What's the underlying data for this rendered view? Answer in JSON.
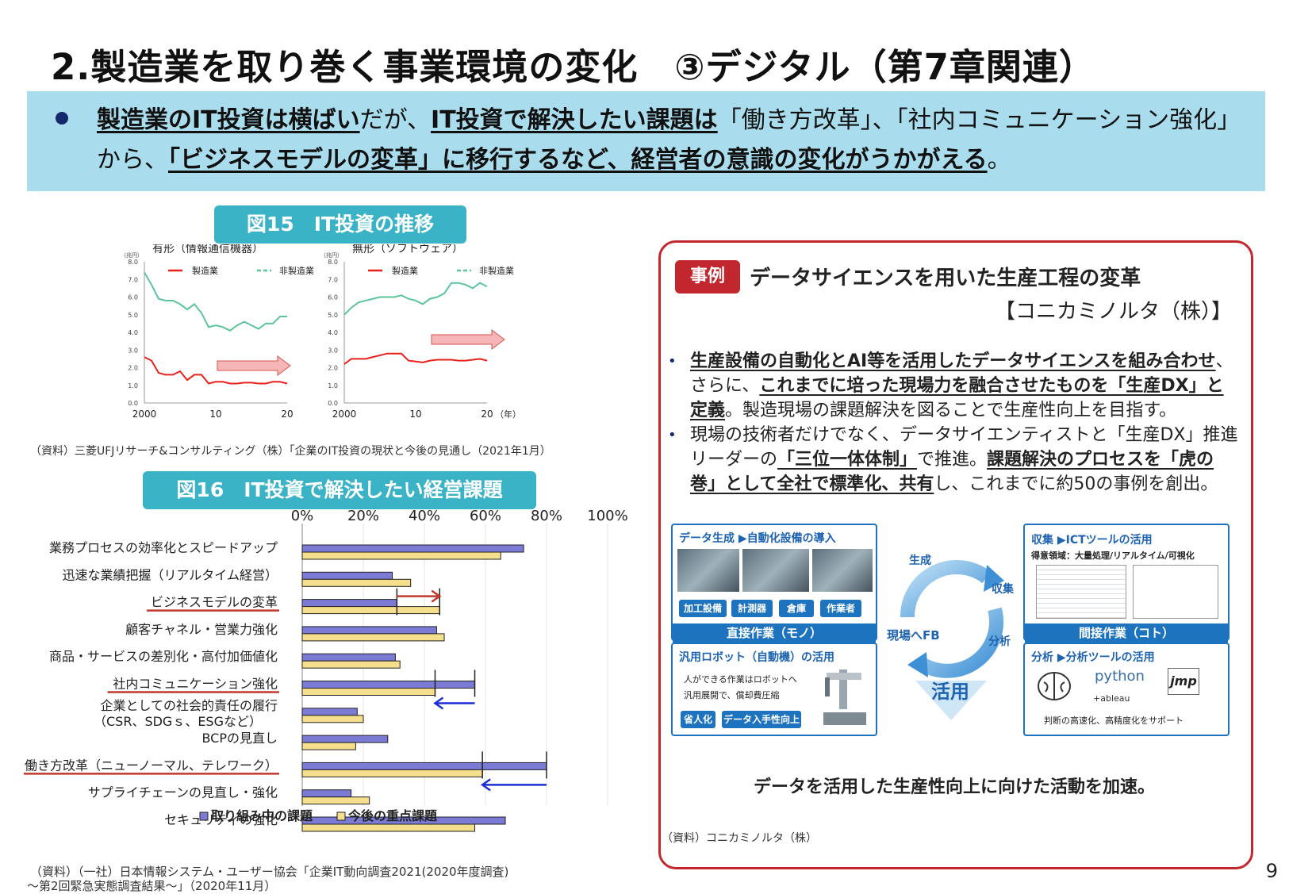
{
  "title": "2.製造業を取り巻く事業環境の変化　③デジタル（第7章関連）",
  "summary": {
    "p1_bold": "製造業のIT投資は横ばい",
    "p2": "だが、",
    "p3_bold": "IT投資で解決したい課題は",
    "p4": "「働き方改革」、「社内コミュニケーション強化」から、",
    "p5_bold": "「ビジネスモデルの変革」に移行するなど、経営者の意識の変化がうかがえる",
    "p6": "。"
  },
  "fig15_title": "図15　IT投資の推移",
  "fig15_source": "（資料）三菱UFJリサーチ&コンサルティング（株）「企業のIT投資の現状と今後の見通し（2021年1月）",
  "fig16_title": "図16　IT投資で解決したい経営課題",
  "fig16_source": "（資料）（一社）日本情報システム・ユーザー協会「企業IT動向調査2021(2020年度調査)",
  "fig16_source2": "～第2回緊急実態調査結果～」（2020年11月）",
  "colors": {
    "manufacturing": "#e8221b",
    "non_manufacturing": "#5cc49a",
    "bar_current": "#7b7bd6",
    "bar_future": "#f5df8c",
    "accent": "#c1272d",
    "teal": "#3bb3c7"
  },
  "chart_data": [
    {
      "type": "line",
      "title": "有形（情報通信機器）",
      "unit": "（兆円）",
      "x": [
        2000,
        2001,
        2002,
        2003,
        2004,
        2005,
        2006,
        2007,
        2008,
        2009,
        2010,
        2011,
        2012,
        2013,
        2014,
        2015,
        2016,
        2017,
        2018,
        2019,
        2020
      ],
      "xticks": [
        "2000",
        "10",
        "20"
      ],
      "yticks": [
        "0.0",
        "1.0",
        "2.0",
        "3.0",
        "4.0",
        "5.0",
        "6.0",
        "7.0",
        "8.0"
      ],
      "ylim": [
        0,
        8
      ],
      "series": [
        {
          "name": "製造業",
          "values": [
            2.6,
            2.4,
            1.7,
            1.6,
            1.6,
            1.8,
            1.3,
            1.6,
            1.6,
            1.1,
            1.2,
            1.2,
            1.1,
            1.1,
            1.15,
            1.15,
            1.1,
            1.1,
            1.2,
            1.2,
            1.1
          ]
        },
        {
          "name": "非製造業",
          "values": [
            7.4,
            6.7,
            5.9,
            5.8,
            5.8,
            5.6,
            5.3,
            5.6,
            5.1,
            4.3,
            4.4,
            4.3,
            4.1,
            4.4,
            4.6,
            4.4,
            4.2,
            4.5,
            4.5,
            4.9,
            4.9
          ]
        }
      ],
      "legend_position": "top"
    },
    {
      "type": "line",
      "title": "無形（ソフトウェア）",
      "unit": "（兆円）",
      "x": [
        2000,
        2001,
        2002,
        2003,
        2004,
        2005,
        2006,
        2007,
        2008,
        2009,
        2010,
        2011,
        2012,
        2013,
        2014,
        2015,
        2016,
        2017,
        2018,
        2019,
        2020
      ],
      "xticks": [
        "2000",
        "10",
        "20"
      ],
      "xunit": "（年）",
      "yticks": [
        "0.0",
        "1.0",
        "2.0",
        "3.0",
        "4.0",
        "5.0",
        "6.0",
        "7.0",
        "8.0"
      ],
      "ylim": [
        0,
        8
      ],
      "series": [
        {
          "name": "製造業",
          "values": [
            2.2,
            2.5,
            2.5,
            2.5,
            2.6,
            2.7,
            2.8,
            2.8,
            2.8,
            2.4,
            2.35,
            2.3,
            2.4,
            2.45,
            2.45,
            2.45,
            2.4,
            2.4,
            2.45,
            2.5,
            2.4
          ]
        },
        {
          "name": "非製造業",
          "values": [
            5.0,
            5.4,
            5.7,
            5.8,
            5.9,
            6.0,
            6.0,
            6.0,
            6.1,
            5.9,
            5.8,
            5.6,
            5.9,
            6.0,
            6.2,
            6.8,
            6.8,
            6.7,
            6.5,
            6.8,
            6.6
          ]
        }
      ],
      "legend_position": "top"
    },
    {
      "type": "bar",
      "orientation": "horizontal",
      "xticks": [
        "0%",
        "20%",
        "40%",
        "60%",
        "80%",
        "100%"
      ],
      "xlim": [
        0,
        100
      ],
      "categories": [
        "業務プロセスの効率化とスピードアップ",
        "迅速な業績把握（リアルタイム経営）",
        "ビジネスモデルの変革",
        "顧客チャネル・営業力強化",
        "商品・サービスの差別化・高付加価値化",
        "社内コミュニケーション強化",
        "企業としての社会的責任の履行",
        "BCPの見直し",
        "働き方改革（ニューノーマル、テレワーク）",
        "サプライチェーンの見直し・強化",
        "セキュリティの強化"
      ],
      "category_line2": [
        "",
        "",
        "",
        "",
        "",
        "",
        "（CSR、SDGｓ、ESGなど）",
        "",
        "",
        "",
        ""
      ],
      "underlined": [
        2,
        5,
        8
      ],
      "series": [
        {
          "name": "取り組み中の課題",
          "values": [
            72.5,
            29.5,
            31,
            44,
            30.5,
            56.5,
            18,
            28,
            80,
            16,
            66.5
          ]
        },
        {
          "name": "今後の重点課題",
          "values": [
            65,
            35.5,
            45,
            46.5,
            32,
            43.5,
            20,
            17.5,
            59,
            22,
            56.5
          ]
        }
      ]
    }
  ],
  "case": {
    "tag": "事例",
    "title": "データサイエンスを用いた生産工程の変革",
    "company": "【コニカミノルタ（株）】",
    "bullet1": {
      "a": "生産設備の自動化とAI等を活用したデータサイエンスを組み合わせ",
      "b": "、さらに、",
      "c": "これまでに培った現場力を融合させたものを「生産DX」と定義",
      "d": "。製造現場の課題解決を図ることで生産性向上を目指す。"
    },
    "bullet2": {
      "a": "現場の技術者だけでなく、データサイエンティストと「生産DX」推進リーダーの",
      "b": "「三位一体体制」",
      "c": "で推進。",
      "d": "課題解決のプロセスを「虎の巻」として全社で標準化、共有",
      "e": "し、これまでに約50の事例を創出。"
    },
    "diagram": {
      "left_top_header": "データ生成 ▶自動化設備の導入",
      "chips1": [
        "加工設備",
        "計測器",
        "倉庫",
        "作業者"
      ],
      "left_band": "直接作業（モノ）",
      "robot_header": "汎用ロボット（自動機）の活用",
      "robot_text1": "人ができる作業はロボットへ",
      "robot_text2": "汎用展開で、償却費圧縮",
      "chips2": [
        "省人化",
        "データ入手性向上"
      ],
      "cycle_labels": [
        "生成",
        "収集",
        "分析",
        "現場へFB"
      ],
      "center_label": "活用",
      "right_top_header": "収集 ▶ICTツールの活用",
      "right_sub": "得意領域：大量処理/リアルタイム/可視化",
      "right_band": "間接作業（コト）",
      "analysis_header": "分析 ▶分析ツールの活用",
      "tools": [
        "python",
        "jmp",
        "+ableau"
      ],
      "analysis_note": "判断の高速化、高精度化をサポート"
    },
    "note": "データを活用した生産性向上に向けた活動を加速。",
    "source": "（資料）コニカミノルタ（株）"
  },
  "page_number": "9"
}
